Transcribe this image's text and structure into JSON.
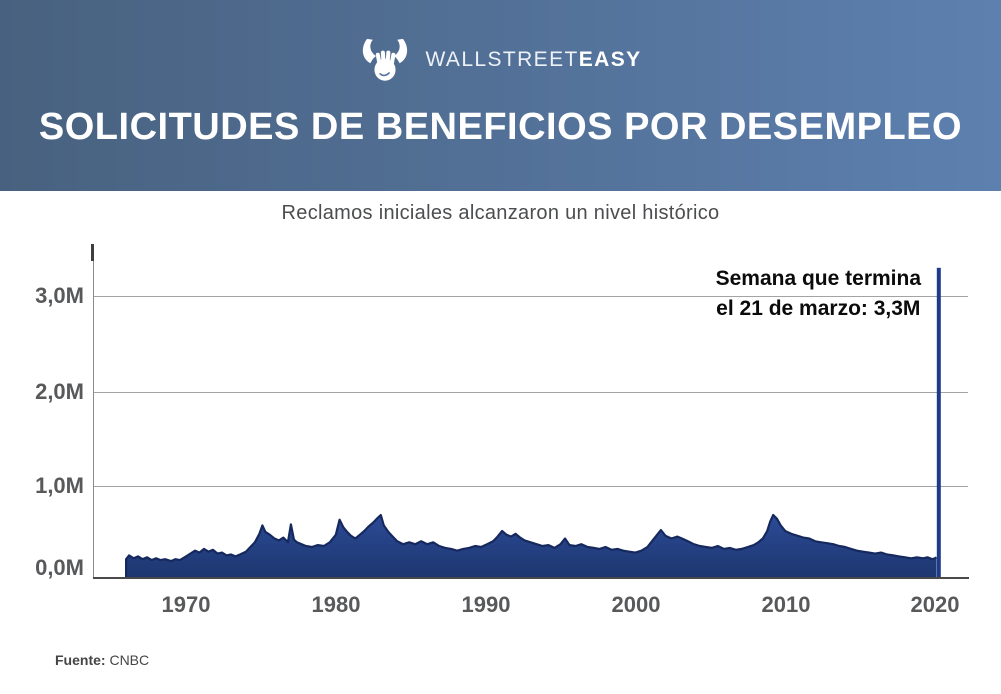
{
  "brand": {
    "wallstreet": "WALLSTREET",
    "easy": "EASY"
  },
  "header": {
    "title": "SOLICITUDES DE BENEFICIOS POR DESEMPLEO"
  },
  "subtitle": "Reclamos iniciales alcanzaron un nivel histórico",
  "footer": {
    "source_label": "Fuente:",
    "source_value": "CNBC"
  },
  "colors": {
    "banner_left": "#48617f",
    "banner_right": "#5d80af",
    "area_fill_top": "#2c4b96",
    "area_fill_bottom": "#1d366f",
    "area_stroke": "#16295e",
    "spike": "#1e3b8a",
    "grid": "#a3a3a3",
    "axis": "#4a4a4a",
    "label_gray": "#58595b"
  },
  "chart_data": {
    "type": "area",
    "title": "SOLICITUDES DE BENEFICIOS POR DESEMPLEO",
    "subtitle": "Reclamos iniciales alcanzaron un nivel histórico",
    "unit": "millones de solicitudes semanales",
    "grid": "horizontal",
    "legend": "none",
    "x_ticks": [
      "1970",
      "1980",
      "1990",
      "2000",
      "2010",
      "2020"
    ],
    "y_ticks": [
      "3,0M",
      "2,0M",
      "1,0M",
      "0,0M"
    ],
    "y_tick_values": [
      3.0,
      2.0,
      1.0,
      0.0
    ],
    "ylim": [
      0,
      3.5
    ],
    "xlim": [
      1963.8,
      2022.2
    ],
    "annotation": {
      "line1": "Semana que termina",
      "line2": "el 21 de marzo: 3,3M"
    },
    "spike": {
      "x": 2020.25,
      "value": 3.3,
      "label": "3,3M"
    },
    "series": [
      {
        "name": "Reclamos iniciales",
        "points": [
          [
            1966.0,
            0.2
          ],
          [
            1966.2,
            0.24
          ],
          [
            1966.5,
            0.21
          ],
          [
            1966.8,
            0.23
          ],
          [
            1967.1,
            0.2
          ],
          [
            1967.4,
            0.22
          ],
          [
            1967.7,
            0.19
          ],
          [
            1968.0,
            0.21
          ],
          [
            1968.3,
            0.19
          ],
          [
            1968.6,
            0.2
          ],
          [
            1969.0,
            0.18
          ],
          [
            1969.3,
            0.2
          ],
          [
            1969.6,
            0.19
          ],
          [
            1970.0,
            0.23
          ],
          [
            1970.3,
            0.26
          ],
          [
            1970.6,
            0.29
          ],
          [
            1970.9,
            0.27
          ],
          [
            1971.2,
            0.31
          ],
          [
            1971.5,
            0.28
          ],
          [
            1971.8,
            0.3
          ],
          [
            1972.1,
            0.26
          ],
          [
            1972.4,
            0.27
          ],
          [
            1972.7,
            0.24
          ],
          [
            1973.0,
            0.25
          ],
          [
            1973.3,
            0.23
          ],
          [
            1973.6,
            0.25
          ],
          [
            1974.0,
            0.28
          ],
          [
            1974.3,
            0.33
          ],
          [
            1974.6,
            0.38
          ],
          [
            1974.9,
            0.47
          ],
          [
            1975.1,
            0.56
          ],
          [
            1975.3,
            0.49
          ],
          [
            1975.6,
            0.46
          ],
          [
            1975.9,
            0.42
          ],
          [
            1976.2,
            0.4
          ],
          [
            1976.5,
            0.43
          ],
          [
            1976.8,
            0.38
          ],
          [
            1977.0,
            0.57
          ],
          [
            1977.2,
            0.41
          ],
          [
            1977.4,
            0.38
          ],
          [
            1977.7,
            0.36
          ],
          [
            1978.0,
            0.34
          ],
          [
            1978.4,
            0.33
          ],
          [
            1978.8,
            0.35
          ],
          [
            1979.2,
            0.34
          ],
          [
            1979.6,
            0.38
          ],
          [
            1980.0,
            0.46
          ],
          [
            1980.25,
            0.62
          ],
          [
            1980.5,
            0.54
          ],
          [
            1980.75,
            0.49
          ],
          [
            1981.0,
            0.45
          ],
          [
            1981.3,
            0.42
          ],
          [
            1981.6,
            0.46
          ],
          [
            1981.9,
            0.5
          ],
          [
            1982.2,
            0.55
          ],
          [
            1982.5,
            0.59
          ],
          [
            1982.8,
            0.64
          ],
          [
            1983.0,
            0.67
          ],
          [
            1983.2,
            0.56
          ],
          [
            1983.5,
            0.49
          ],
          [
            1983.8,
            0.44
          ],
          [
            1984.1,
            0.39
          ],
          [
            1984.5,
            0.36
          ],
          [
            1984.9,
            0.38
          ],
          [
            1985.3,
            0.36
          ],
          [
            1985.7,
            0.39
          ],
          [
            1986.1,
            0.36
          ],
          [
            1986.5,
            0.38
          ],
          [
            1986.9,
            0.34
          ],
          [
            1987.3,
            0.32
          ],
          [
            1987.7,
            0.31
          ],
          [
            1988.1,
            0.29
          ],
          [
            1988.5,
            0.31
          ],
          [
            1988.9,
            0.32
          ],
          [
            1989.3,
            0.34
          ],
          [
            1989.7,
            0.33
          ],
          [
            1990.1,
            0.36
          ],
          [
            1990.5,
            0.39
          ],
          [
            1990.8,
            0.44
          ],
          [
            1991.1,
            0.5
          ],
          [
            1991.4,
            0.46
          ],
          [
            1991.7,
            0.44
          ],
          [
            1992.0,
            0.47
          ],
          [
            1992.3,
            0.43
          ],
          [
            1992.6,
            0.4
          ],
          [
            1993.0,
            0.38
          ],
          [
            1993.4,
            0.36
          ],
          [
            1993.8,
            0.34
          ],
          [
            1994.2,
            0.35
          ],
          [
            1994.6,
            0.32
          ],
          [
            1995.0,
            0.36
          ],
          [
            1995.3,
            0.42
          ],
          [
            1995.6,
            0.35
          ],
          [
            1996.0,
            0.34
          ],
          [
            1996.4,
            0.36
          ],
          [
            1996.8,
            0.33
          ],
          [
            1997.2,
            0.32
          ],
          [
            1997.6,
            0.31
          ],
          [
            1998.0,
            0.33
          ],
          [
            1998.4,
            0.3
          ],
          [
            1998.8,
            0.31
          ],
          [
            1999.2,
            0.29
          ],
          [
            1999.6,
            0.28
          ],
          [
            2000.0,
            0.27
          ],
          [
            2000.4,
            0.29
          ],
          [
            2000.8,
            0.33
          ],
          [
            2001.1,
            0.39
          ],
          [
            2001.4,
            0.45
          ],
          [
            2001.7,
            0.51
          ],
          [
            2002.0,
            0.45
          ],
          [
            2002.4,
            0.42
          ],
          [
            2002.8,
            0.44
          ],
          [
            2003.1,
            0.42
          ],
          [
            2003.5,
            0.39
          ],
          [
            2003.9,
            0.36
          ],
          [
            2004.3,
            0.34
          ],
          [
            2004.7,
            0.33
          ],
          [
            2005.1,
            0.32
          ],
          [
            2005.5,
            0.34
          ],
          [
            2005.9,
            0.31
          ],
          [
            2006.3,
            0.32
          ],
          [
            2006.7,
            0.3
          ],
          [
            2007.1,
            0.31
          ],
          [
            2007.5,
            0.33
          ],
          [
            2007.9,
            0.35
          ],
          [
            2008.2,
            0.38
          ],
          [
            2008.5,
            0.42
          ],
          [
            2008.8,
            0.5
          ],
          [
            2009.0,
            0.6
          ],
          [
            2009.2,
            0.67
          ],
          [
            2009.45,
            0.63
          ],
          [
            2009.7,
            0.56
          ],
          [
            2010.0,
            0.5
          ],
          [
            2010.4,
            0.47
          ],
          [
            2010.8,
            0.45
          ],
          [
            2011.2,
            0.43
          ],
          [
            2011.6,
            0.42
          ],
          [
            2012.0,
            0.39
          ],
          [
            2012.4,
            0.38
          ],
          [
            2012.8,
            0.37
          ],
          [
            2013.2,
            0.36
          ],
          [
            2013.6,
            0.34
          ],
          [
            2014.0,
            0.33
          ],
          [
            2014.4,
            0.31
          ],
          [
            2014.8,
            0.29
          ],
          [
            2015.2,
            0.28
          ],
          [
            2015.6,
            0.27
          ],
          [
            2016.0,
            0.26
          ],
          [
            2016.4,
            0.27
          ],
          [
            2016.8,
            0.25
          ],
          [
            2017.2,
            0.24
          ],
          [
            2017.6,
            0.23
          ],
          [
            2018.0,
            0.22
          ],
          [
            2018.4,
            0.21
          ],
          [
            2018.8,
            0.22
          ],
          [
            2019.2,
            0.21
          ],
          [
            2019.5,
            0.22
          ],
          [
            2019.8,
            0.2
          ],
          [
            2020.0,
            0.21
          ],
          [
            2020.1,
            0.22
          ]
        ]
      }
    ]
  }
}
